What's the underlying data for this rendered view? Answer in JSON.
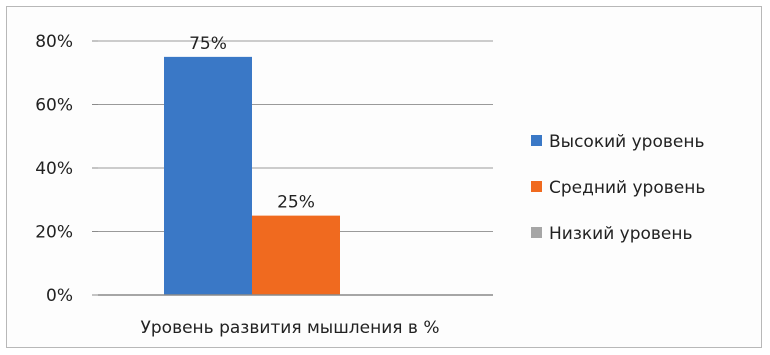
{
  "chart_data": {
    "type": "bar",
    "categories": [
      "Уровень развития мышления в %"
    ],
    "series": [
      {
        "name": "Высокий уровень",
        "values": [
          75
        ],
        "color": "#3a78c6",
        "data_label": "75%"
      },
      {
        "name": "Средний уровень",
        "values": [
          25
        ],
        "color": "#f06a1f",
        "data_label": "25%"
      },
      {
        "name": "Низкий уровень",
        "values": [
          0
        ],
        "color": "#a6a6a6",
        "data_label": ""
      }
    ],
    "y_ticks": [
      {
        "value": 0,
        "label": "0%"
      },
      {
        "value": 20,
        "label": "20%"
      },
      {
        "value": 40,
        "label": "40%"
      },
      {
        "value": 60,
        "label": "60%"
      },
      {
        "value": 80,
        "label": "80%"
      }
    ],
    "ylim": [
      0,
      80
    ],
    "grid": true,
    "legend_position": "right"
  }
}
